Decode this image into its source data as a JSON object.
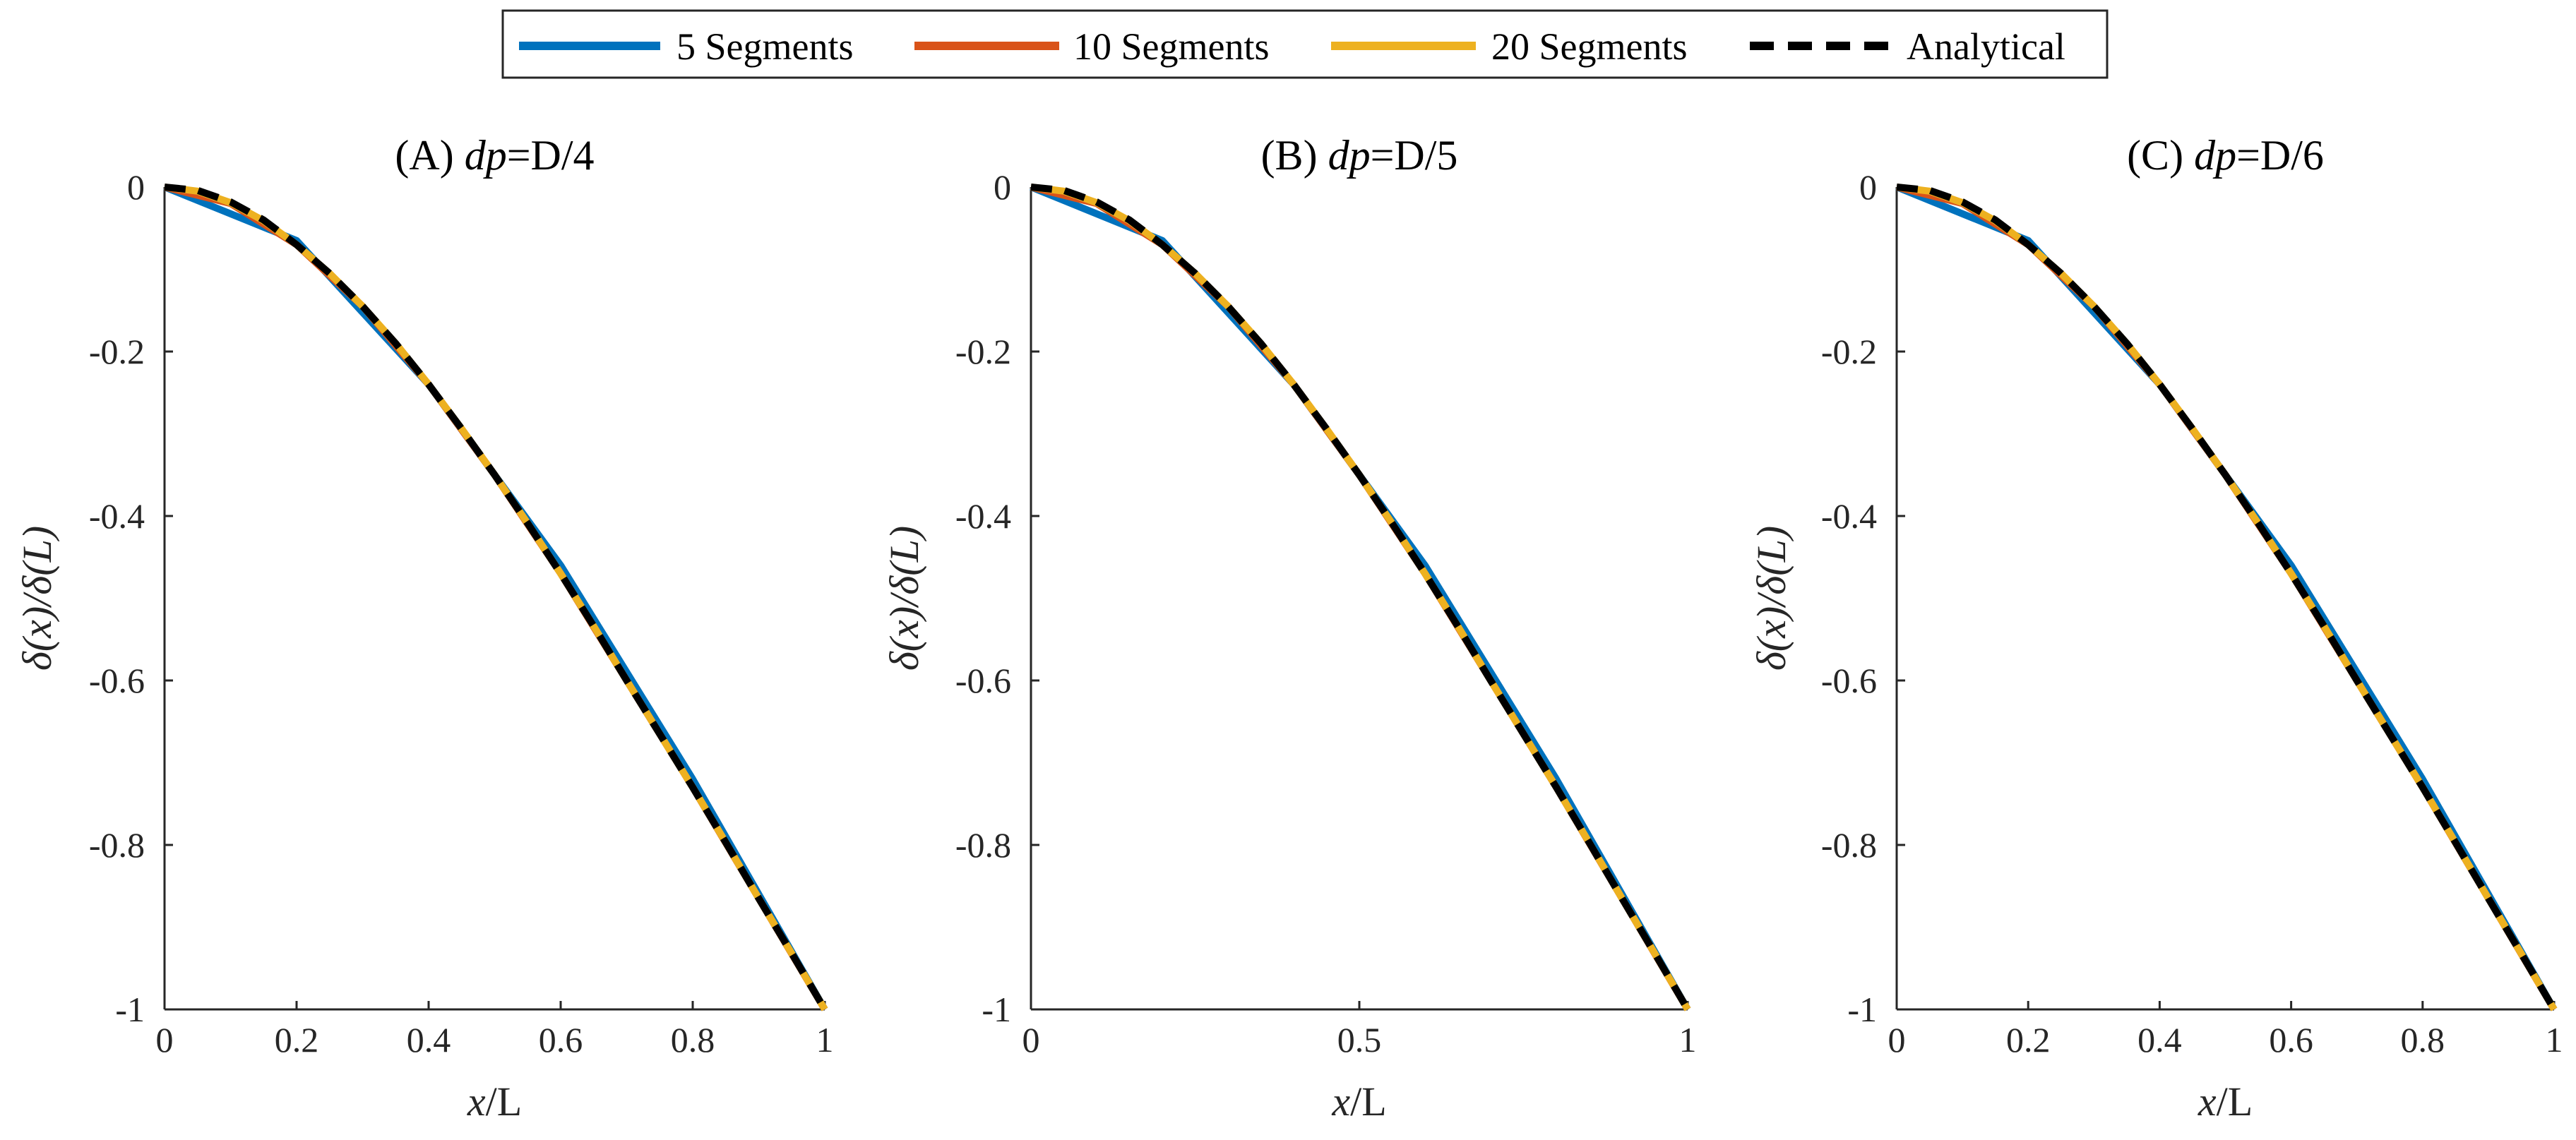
{
  "legend": {
    "items": [
      {
        "label": "5 Segments",
        "color": "#0072BD",
        "style": "solid"
      },
      {
        "label": "10 Segments",
        "color": "#D95319",
        "style": "solid"
      },
      {
        "label": "20 Segments",
        "color": "#EDB120",
        "style": "solid"
      },
      {
        "label": "Analytical",
        "color": "#000000",
        "style": "dashed"
      }
    ]
  },
  "chart_data": [
    {
      "type": "line",
      "title_prefix": "(A) ",
      "title_var": "dp",
      "title_suffix": "=D/4",
      "xlabel_var": "x",
      "xlabel_suffix": "/L",
      "ylabel": "δ(x)/δ(L)",
      "xlim": [
        0,
        1
      ],
      "ylim": [
        -1,
        0
      ],
      "xticks": [
        0,
        0.2,
        0.4,
        0.6,
        0.8,
        1
      ],
      "xtick_labels": [
        "0",
        "0.2",
        "0.4",
        "0.6",
        "0.8",
        "1"
      ],
      "yticks": [
        0,
        -0.2,
        -0.4,
        -0.6,
        -0.8,
        -1
      ],
      "ytick_labels": [
        "0",
        "-0.2",
        "-0.4",
        "-0.6",
        "-0.8",
        "-1"
      ],
      "series": [
        {
          "name": "5 Segments",
          "x": [
            0,
            0.2,
            0.4,
            0.6,
            0.8,
            1
          ],
          "y": [
            0,
            -0.065,
            -0.24,
            -0.46,
            -0.72,
            -1
          ]
        },
        {
          "name": "10 Segments",
          "x": [
            0,
            0.1,
            0.2,
            0.3,
            0.4,
            0.5,
            0.6,
            0.7,
            0.8,
            0.9,
            1
          ],
          "y": [
            0,
            -0.02,
            -0.07,
            -0.145,
            -0.24,
            -0.35,
            -0.47,
            -0.6,
            -0.73,
            -0.865,
            -1
          ]
        },
        {
          "name": "20 Segments",
          "x": [
            0,
            0.05,
            0.1,
            0.15,
            0.2,
            0.25,
            0.3,
            0.35,
            0.4,
            0.45,
            0.5,
            0.55,
            0.6,
            0.65,
            0.7,
            0.75,
            0.8,
            0.85,
            0.9,
            0.95,
            1
          ],
          "y": [
            0,
            -0.005,
            -0.019,
            -0.041,
            -0.07,
            -0.105,
            -0.145,
            -0.19,
            -0.24,
            -0.294,
            -0.35,
            -0.409,
            -0.47,
            -0.534,
            -0.6,
            -0.665,
            -0.73,
            -0.797,
            -0.865,
            -0.932,
            -1
          ]
        },
        {
          "name": "Analytical",
          "x": [
            0,
            0.05,
            0.1,
            0.15,
            0.2,
            0.25,
            0.3,
            0.35,
            0.4,
            0.45,
            0.5,
            0.55,
            0.6,
            0.65,
            0.7,
            0.75,
            0.8,
            0.85,
            0.9,
            0.95,
            1
          ],
          "y": [
            0,
            -0.004,
            -0.018,
            -0.04,
            -0.07,
            -0.105,
            -0.145,
            -0.19,
            -0.24,
            -0.294,
            -0.35,
            -0.409,
            -0.47,
            -0.534,
            -0.6,
            -0.665,
            -0.73,
            -0.797,
            -0.865,
            -0.932,
            -1
          ]
        }
      ]
    },
    {
      "type": "line",
      "title_prefix": "(B) ",
      "title_var": "dp",
      "title_suffix": "=D/5",
      "xlabel_var": "x",
      "xlabel_suffix": "/L",
      "ylabel": "δ(x)/δ(L)",
      "xlim": [
        0,
        1
      ],
      "ylim": [
        -1,
        0
      ],
      "xticks": [
        0,
        0.5,
        1
      ],
      "xtick_labels": [
        "0",
        "0.5",
        "1"
      ],
      "yticks": [
        0,
        -0.2,
        -0.4,
        -0.6,
        -0.8,
        -1
      ],
      "ytick_labels": [
        "0",
        "-0.2",
        "-0.4",
        "-0.6",
        "-0.8",
        "-1"
      ],
      "series": [
        {
          "name": "5 Segments",
          "x": [
            0,
            0.2,
            0.4,
            0.6,
            0.8,
            1
          ],
          "y": [
            0,
            -0.065,
            -0.24,
            -0.46,
            -0.72,
            -1
          ]
        },
        {
          "name": "10 Segments",
          "x": [
            0,
            0.1,
            0.2,
            0.3,
            0.4,
            0.5,
            0.6,
            0.7,
            0.8,
            0.9,
            1
          ],
          "y": [
            0,
            -0.02,
            -0.07,
            -0.145,
            -0.24,
            -0.35,
            -0.47,
            -0.6,
            -0.73,
            -0.865,
            -1
          ]
        },
        {
          "name": "20 Segments",
          "x": [
            0,
            0.05,
            0.1,
            0.15,
            0.2,
            0.25,
            0.3,
            0.35,
            0.4,
            0.45,
            0.5,
            0.55,
            0.6,
            0.65,
            0.7,
            0.75,
            0.8,
            0.85,
            0.9,
            0.95,
            1
          ],
          "y": [
            0,
            -0.005,
            -0.019,
            -0.041,
            -0.07,
            -0.105,
            -0.145,
            -0.19,
            -0.24,
            -0.294,
            -0.35,
            -0.409,
            -0.47,
            -0.534,
            -0.6,
            -0.665,
            -0.73,
            -0.797,
            -0.865,
            -0.932,
            -1
          ]
        },
        {
          "name": "Analytical",
          "x": [
            0,
            0.05,
            0.1,
            0.15,
            0.2,
            0.25,
            0.3,
            0.35,
            0.4,
            0.45,
            0.5,
            0.55,
            0.6,
            0.65,
            0.7,
            0.75,
            0.8,
            0.85,
            0.9,
            0.95,
            1
          ],
          "y": [
            0,
            -0.004,
            -0.018,
            -0.04,
            -0.07,
            -0.105,
            -0.145,
            -0.19,
            -0.24,
            -0.294,
            -0.35,
            -0.409,
            -0.47,
            -0.534,
            -0.6,
            -0.665,
            -0.73,
            -0.797,
            -0.865,
            -0.932,
            -1
          ]
        }
      ]
    },
    {
      "type": "line",
      "title_prefix": "(C) ",
      "title_var": "dp",
      "title_suffix": "=D/6",
      "xlabel_var": "x",
      "xlabel_suffix": "/L",
      "ylabel": "δ(x)/δ(L)",
      "xlim": [
        0,
        1
      ],
      "ylim": [
        -1,
        0
      ],
      "xticks": [
        0,
        0.2,
        0.4,
        0.6,
        0.8,
        1
      ],
      "xtick_labels": [
        "0",
        "0.2",
        "0.4",
        "0.6",
        "0.8",
        "1"
      ],
      "yticks": [
        0,
        -0.2,
        -0.4,
        -0.6,
        -0.8,
        -1
      ],
      "ytick_labels": [
        "0",
        "-0.2",
        "-0.4",
        "-0.6",
        "-0.8",
        "-1"
      ],
      "series": [
        {
          "name": "5 Segments",
          "x": [
            0,
            0.2,
            0.4,
            0.6,
            0.8,
            1
          ],
          "y": [
            0,
            -0.065,
            -0.24,
            -0.46,
            -0.72,
            -1
          ]
        },
        {
          "name": "10 Segments",
          "x": [
            0,
            0.1,
            0.2,
            0.3,
            0.4,
            0.5,
            0.6,
            0.7,
            0.8,
            0.9,
            1
          ],
          "y": [
            0,
            -0.02,
            -0.07,
            -0.145,
            -0.24,
            -0.35,
            -0.47,
            -0.6,
            -0.73,
            -0.865,
            -1
          ]
        },
        {
          "name": "20 Segments",
          "x": [
            0,
            0.05,
            0.1,
            0.15,
            0.2,
            0.25,
            0.3,
            0.35,
            0.4,
            0.45,
            0.5,
            0.55,
            0.6,
            0.65,
            0.7,
            0.75,
            0.8,
            0.85,
            0.9,
            0.95,
            1
          ],
          "y": [
            0,
            -0.005,
            -0.019,
            -0.041,
            -0.07,
            -0.105,
            -0.145,
            -0.19,
            -0.24,
            -0.294,
            -0.35,
            -0.409,
            -0.47,
            -0.534,
            -0.6,
            -0.665,
            -0.73,
            -0.797,
            -0.865,
            -0.932,
            -1
          ]
        },
        {
          "name": "Analytical",
          "x": [
            0,
            0.05,
            0.1,
            0.15,
            0.2,
            0.25,
            0.3,
            0.35,
            0.4,
            0.45,
            0.5,
            0.55,
            0.6,
            0.65,
            0.7,
            0.75,
            0.8,
            0.85,
            0.9,
            0.95,
            1
          ],
          "y": [
            0,
            -0.004,
            -0.018,
            -0.04,
            -0.07,
            -0.105,
            -0.145,
            -0.19,
            -0.24,
            -0.294,
            -0.35,
            -0.409,
            -0.47,
            -0.534,
            -0.6,
            -0.665,
            -0.73,
            -0.797,
            -0.865,
            -0.932,
            -1
          ]
        }
      ]
    }
  ]
}
